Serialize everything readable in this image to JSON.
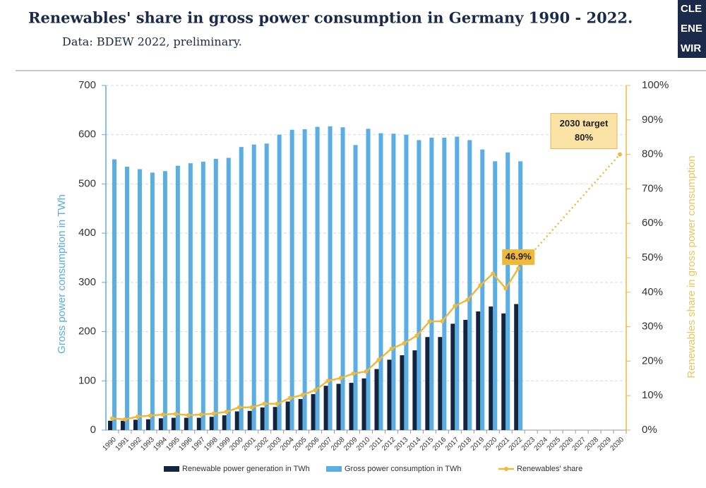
{
  "logo": [
    "CLE",
    "ENE",
    "WIR"
  ],
  "chart_data": {
    "type": "bar",
    "title": "Renewables' share in gross power consumption in Germany 1990 - 2022.",
    "subtitle": "Data: BDEW 2022, preliminary.",
    "ylabel": "Gross power consumption in TWh",
    "y2label": "Renewables share in gross power consumption",
    "categories": [
      "1990",
      "1991",
      "1992",
      "1993",
      "1994",
      "1995",
      "1996",
      "1997",
      "1998",
      "1999",
      "2000",
      "2001",
      "2002",
      "2003",
      "2004",
      "2005",
      "2006",
      "2007",
      "2008",
      "2009",
      "2010",
      "2011",
      "2012",
      "2013",
      "2014",
      "2015",
      "2016",
      "2017",
      "2018",
      "2019",
      "2020",
      "2021",
      "2022",
      "2023",
      "2024",
      "2025",
      "2026",
      "2027",
      "2028",
      "2029",
      "2030"
    ],
    "series": [
      {
        "name": "Renewable power generation in TWh",
        "color": "#14243f",
        "values": [
          19,
          19,
          21,
          22,
          24,
          25,
          25,
          25,
          27,
          30,
          38,
          39,
          46,
          47,
          58,
          63,
          73,
          90,
          94,
          96,
          105,
          124,
          143,
          152,
          162,
          189,
          189,
          216,
          224,
          241,
          251,
          237,
          256,
          null,
          null,
          null,
          null,
          null,
          null,
          null,
          null
        ]
      },
      {
        "name": "Gross power consumption in TWh",
        "color": "#5aaee3",
        "values": [
          550,
          535,
          530,
          523,
          526,
          537,
          542,
          545,
          551,
          553,
          575,
          580,
          582,
          600,
          610,
          611,
          616,
          617,
          615,
          579,
          612,
          603,
          602,
          600,
          589,
          594,
          594,
          596,
          589,
          570,
          546,
          564,
          546,
          null,
          null,
          null,
          null,
          null,
          null,
          null,
          null
        ]
      },
      {
        "name": "Renewables' share",
        "color": "#f0b93a",
        "type": "line",
        "axis": "y2",
        "values": [
          3.4,
          3.1,
          3.9,
          4.2,
          4.5,
          4.7,
          4.3,
          4.5,
          4.8,
          5.3,
          6.6,
          6.6,
          7.7,
          7.6,
          9.3,
          10.2,
          11.6,
          14.3,
          15.1,
          16.4,
          17.0,
          20.4,
          23.6,
          25.2,
          27.4,
          31.5,
          31.6,
          36.0,
          37.8,
          42.0,
          45.4,
          41.1,
          46.9,
          null,
          null,
          null,
          null,
          null,
          null,
          null,
          null
        ],
        "value_labels": [
          null,
          null,
          null,
          null,
          null,
          null,
          null,
          null,
          null,
          null,
          null,
          null,
          null,
          null,
          null,
          null,
          null,
          null,
          null,
          null,
          null,
          null,
          null,
          null,
          null,
          null,
          null,
          null,
          null,
          null,
          null,
          null,
          "46.9%",
          null,
          null,
          null,
          null,
          null,
          null,
          null,
          null
        ]
      }
    ],
    "annotations": [
      {
        "text": "2030 target",
        "x": "2030",
        "value": 80,
        "value_label": "80%"
      }
    ],
    "ylim": [
      0,
      700
    ],
    "yticks": [
      0,
      100,
      200,
      300,
      400,
      500,
      600,
      700
    ],
    "y2lim": [
      0,
      100
    ],
    "y2ticks": [
      {
        "value": 0,
        "label": "0%"
      },
      {
        "value": 10,
        "label": "10%"
      },
      {
        "value": 20,
        "label": "20%"
      },
      {
        "value": 30,
        "label": "30%"
      },
      {
        "value": 40,
        "label": "40%"
      },
      {
        "value": 50,
        "label": "50%"
      },
      {
        "value": 60,
        "label": "60%"
      },
      {
        "value": 70,
        "label": "70%"
      },
      {
        "value": 80,
        "label": "80%"
      },
      {
        "value": 90,
        "label": "90%"
      },
      {
        "value": 100,
        "label": "100%"
      }
    ],
    "grid": true,
    "legend": "bottom"
  }
}
